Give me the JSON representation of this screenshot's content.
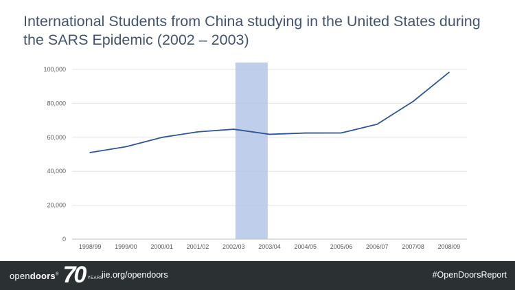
{
  "slide": {
    "title": "International Students from China studying in the United States during the SARS Epidemic (2002 – 2003)"
  },
  "chart_data": {
    "type": "line",
    "title": "",
    "xlabel": "",
    "ylabel": "",
    "categories": [
      "1998/99",
      "1999/00",
      "2000/01",
      "2001/02",
      "2002/03",
      "2003/04",
      "2004/05",
      "2005/06",
      "2006/07",
      "2007/08",
      "2008/09"
    ],
    "series": [
      {
        "values": [
          51001,
          54466,
          59939,
          63211,
          64757,
          61765,
          62523,
          62582,
          67723,
          81127,
          98235
        ],
        "color": "#2f5597"
      }
    ],
    "ylim": [
      0,
      100000
    ],
    "yticks": [
      0,
      20000,
      40000,
      60000,
      80000,
      100000
    ],
    "ytick_labels": [
      "0",
      "20,000",
      "40,000",
      "60,000",
      "80,000",
      "100,000"
    ],
    "grid": true,
    "highlight": {
      "from": "2002/03",
      "to": "2003/04",
      "color": "#b4c7e7"
    }
  },
  "footer": {
    "logo_word_light": "open",
    "logo_word_bold": "doors",
    "logo_registered": "®",
    "logo_number": "70",
    "logo_subtext": "YEARS",
    "url": "iie.org/opendoors",
    "hashtag": "#OpenDoorsReport"
  }
}
